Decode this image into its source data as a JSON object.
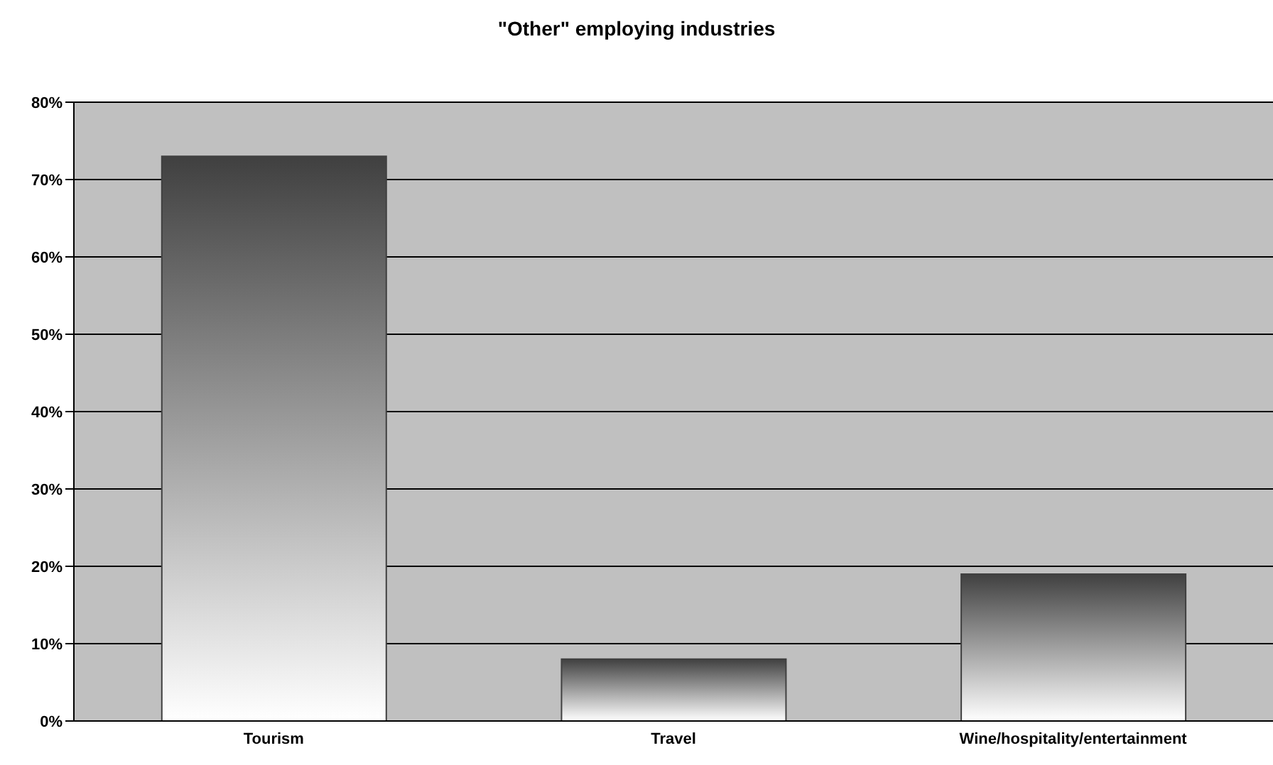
{
  "chart_data": {
    "type": "bar",
    "title": "\"Other\" employing industries",
    "categories": [
      "Tourism",
      "Travel",
      "Wine/hospitality/entertainment"
    ],
    "values": [
      73,
      8,
      19
    ],
    "color": "#404040",
    "ylim": [
      0,
      80
    ],
    "yticks": [
      {
        "value": 0,
        "label": "0%"
      },
      {
        "value": 10,
        "label": "10%"
      },
      {
        "value": 20,
        "label": "20%"
      },
      {
        "value": 30,
        "label": "30%"
      },
      {
        "value": 40,
        "label": "40%"
      },
      {
        "value": 50,
        "label": "50%"
      },
      {
        "value": 60,
        "label": "60%"
      },
      {
        "value": 70,
        "label": "70%"
      },
      {
        "value": 80,
        "label": "80%"
      }
    ],
    "grid": "y"
  }
}
